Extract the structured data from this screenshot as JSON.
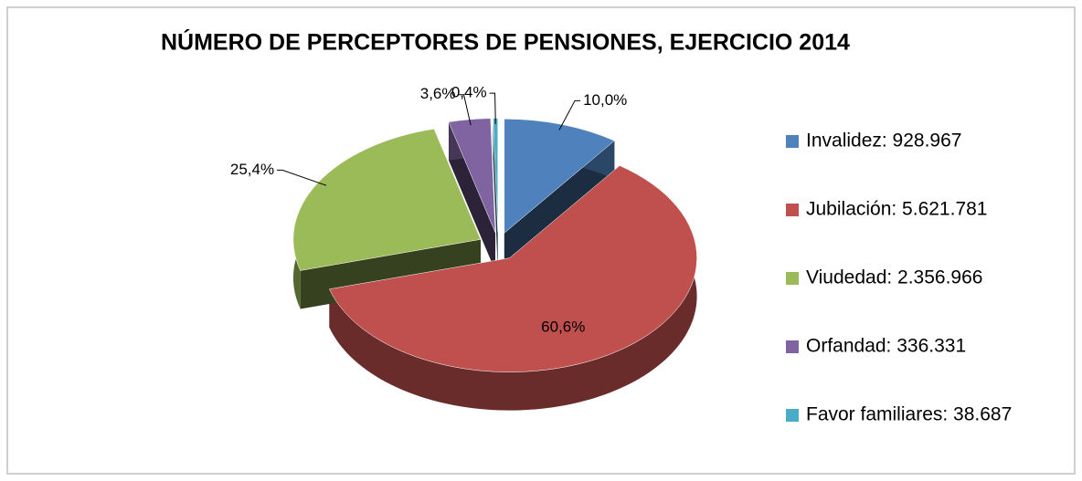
{
  "chart_data": {
    "type": "pie",
    "title": "NÚMERO DE PERCEPTORES DE PENSIONES, EJERCICIO 2014",
    "categories": [
      "Invalidez:  928.967",
      "Jubilación: 5.621.781",
      "Viudedad: 2.356.966",
      "Orfandad: 336.331",
      "Favor familiares: 38.687"
    ],
    "values": [
      10.0,
      60.6,
      25.4,
      3.6,
      0.4
    ],
    "value_labels": [
      "10,0%",
      "60,6%",
      "25,4%",
      "3,6%",
      "0,4%"
    ],
    "colors": [
      "#4f81bd",
      "#c0504d",
      "#9bbb59",
      "#8064a2",
      "#4bacc6"
    ],
    "legend": "right"
  }
}
